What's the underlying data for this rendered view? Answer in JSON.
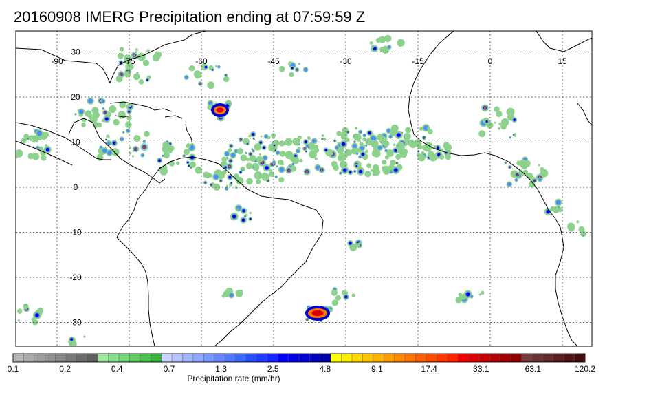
{
  "title": "20160908 IMERG Precipitation ending at 07:59:59 Z",
  "map": {
    "lon_labels": [
      "-90",
      "-75",
      "-60",
      "-45",
      "-30",
      "-15",
      "0",
      "15"
    ],
    "lat_labels": [
      "30",
      "20",
      "10",
      "0",
      "-10",
      "-20",
      "-30"
    ],
    "lon_values": [
      -90,
      -75,
      -60,
      -45,
      -30,
      -15,
      0,
      15
    ],
    "lat_values": [
      30,
      20,
      10,
      0,
      -10,
      -20,
      -30
    ],
    "grid_style": "dotted"
  },
  "colorbar": {
    "title": "Precipitation rate (mm/hr)",
    "tick_labels": [
      "0.1",
      "0.2",
      "0.4",
      "0.7",
      "1.3",
      "2.5",
      "4.8",
      "9.1",
      "17.4",
      "33.1",
      "63.1",
      "120.2"
    ],
    "colors": [
      "#b4b4b4",
      "#a8a8a8",
      "#9c9c9c",
      "#909090",
      "#848484",
      "#787878",
      "#6c6c6c",
      "#606060",
      "#9be69b",
      "#87dc87",
      "#73d273",
      "#5fc85f",
      "#4bbe4b",
      "#37b437",
      "#c8d2ff",
      "#b4c3ff",
      "#a0b4ff",
      "#8ca5ff",
      "#7896ff",
      "#6487ff",
      "#5078ff",
      "#3c69ff",
      "#2850ff",
      "#1e3cff",
      "#1428ff",
      "#0000ff",
      "#0000e6",
      "#0000d2",
      "#0000be",
      "#0000aa",
      "#ffff00",
      "#ffeb00",
      "#ffd700",
      "#ffc300",
      "#ffaf00",
      "#ff9b00",
      "#ff8700",
      "#ff7300",
      "#ff5f00",
      "#ff4b00",
      "#ff3700",
      "#ff2300",
      "#f00000",
      "#dc0000",
      "#c80000",
      "#b40000",
      "#a00000",
      "#8c0000",
      "#783c3c",
      "#6e3232",
      "#642828",
      "#5a1e1e",
      "#501414",
      "#460a0a"
    ]
  },
  "precip_colors": {
    "light": "#8cd28c",
    "medium": "#4a8cff",
    "heavy": "#0000d2",
    "intense": "#ff7800",
    "extreme": "#dc0000"
  }
}
